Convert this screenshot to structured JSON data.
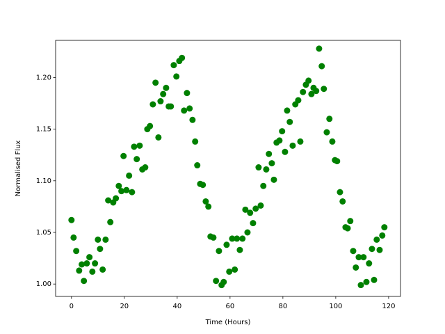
{
  "chart_data": {
    "type": "scatter",
    "xlabel": "Time (Hours)",
    "ylabel": "Normalised Flux",
    "color": "#008000",
    "xlim": [
      -6,
      124.5
    ],
    "ylim": [
      0.988,
      1.236
    ],
    "xticks": [
      0,
      20,
      40,
      60,
      80,
      100,
      120
    ],
    "yticks": [
      {
        "value": 1.0,
        "label": "1.00"
      },
      1.05,
      {
        "value": 1.1,
        "label": "1.10"
      },
      1.15,
      {
        "value": 1.2,
        "label": "1.20"
      }
    ],
    "x": [
      0,
      0.8,
      1.8,
      2.9,
      3.9,
      4.7,
      5.8,
      6.8,
      7.9,
      8.9,
      10,
      10.8,
      11.8,
      12.9,
      13.9,
      14.7,
      15.8,
      16.8,
      17.9,
      18.9,
      19.7,
      20.8,
      21.8,
      22.9,
      23.7,
      24.7,
      25.8,
      26.8,
      27.9,
      28.7,
      29.7,
      30.8,
      31.8,
      32.9,
      33.7,
      34.7,
      35.8,
      36.8,
      37.6,
      38.7,
      39.7,
      40.8,
      41.8,
      42.6,
      43.7,
      44.7,
      45.8,
      46.8,
      47.6,
      48.7,
      49.7,
      50.8,
      51.8,
      52.6,
      53.7,
      54.7,
      55.8,
      56.8,
      57.6,
      58.7,
      59.7,
      60.8,
      61.8,
      62.6,
      63.7,
      64.7,
      65.8,
      66.6,
      67.6,
      68.7,
      69.7,
      70.8,
      71.6,
      72.6,
      73.7,
      74.7,
      75.8,
      76.6,
      77.6,
      78.7,
      79.7,
      80.8,
      81.6,
      82.6,
      83.7,
      84.7,
      85.8,
      86.6,
      87.6,
      88.7,
      89.7,
      90.8,
      91.6,
      92.6,
      93.7,
      94.7,
      95.5,
      96.6,
      97.6,
      98.7,
      99.7,
      100.5,
      101.6,
      102.6,
      103.7,
      104.5,
      105.5,
      106.6,
      107.6,
      108.7,
      109.5,
      110.5,
      111.6,
      112.6,
      113.7,
      114.5,
      115.5,
      116.6,
      117.6,
      118.4
    ],
    "values": [
      1.062,
      1.045,
      1.032,
      1.013,
      1.019,
      1.003,
      1.02,
      1.026,
      1.012,
      1.02,
      1.043,
      1.034,
      1.014,
      1.043,
      1.081,
      1.06,
      1.079,
      1.083,
      1.095,
      1.09,
      1.124,
      1.091,
      1.105,
      1.089,
      1.133,
      1.121,
      1.134,
      1.111,
      1.113,
      1.15,
      1.153,
      1.174,
      1.195,
      1.142,
      1.177,
      1.184,
      1.19,
      1.172,
      1.172,
      1.212,
      1.201,
      1.216,
      1.219,
      1.168,
      1.185,
      1.17,
      1.159,
      1.138,
      1.115,
      1.097,
      1.096,
      1.08,
      1.075,
      1.046,
      1.045,
      1.003,
      1.032,
      0.999,
      1.002,
      1.038,
      1.012,
      1.044,
      1.014,
      1.044,
      1.033,
      1.044,
      1.072,
      1.05,
      1.069,
      1.059,
      1.073,
      1.113,
      1.076,
      1.095,
      1.111,
      1.126,
      1.117,
      1.101,
      1.137,
      1.139,
      1.148,
      1.128,
      1.168,
      1.157,
      1.134,
      1.174,
      1.178,
      1.138,
      1.186,
      1.193,
      1.197,
      1.184,
      1.19,
      1.187,
      1.228,
      1.211,
      1.189,
      1.147,
      1.16,
      1.138,
      1.12,
      1.119,
      1.089,
      1.08,
      1.055,
      1.054,
      1.061,
      1.032,
      1.016,
      1.026,
      0.999,
      1.026,
      1.002,
      1.02,
      1.034,
      1.004,
      1.043,
      1.033,
      1.047,
      1.055
    ]
  }
}
